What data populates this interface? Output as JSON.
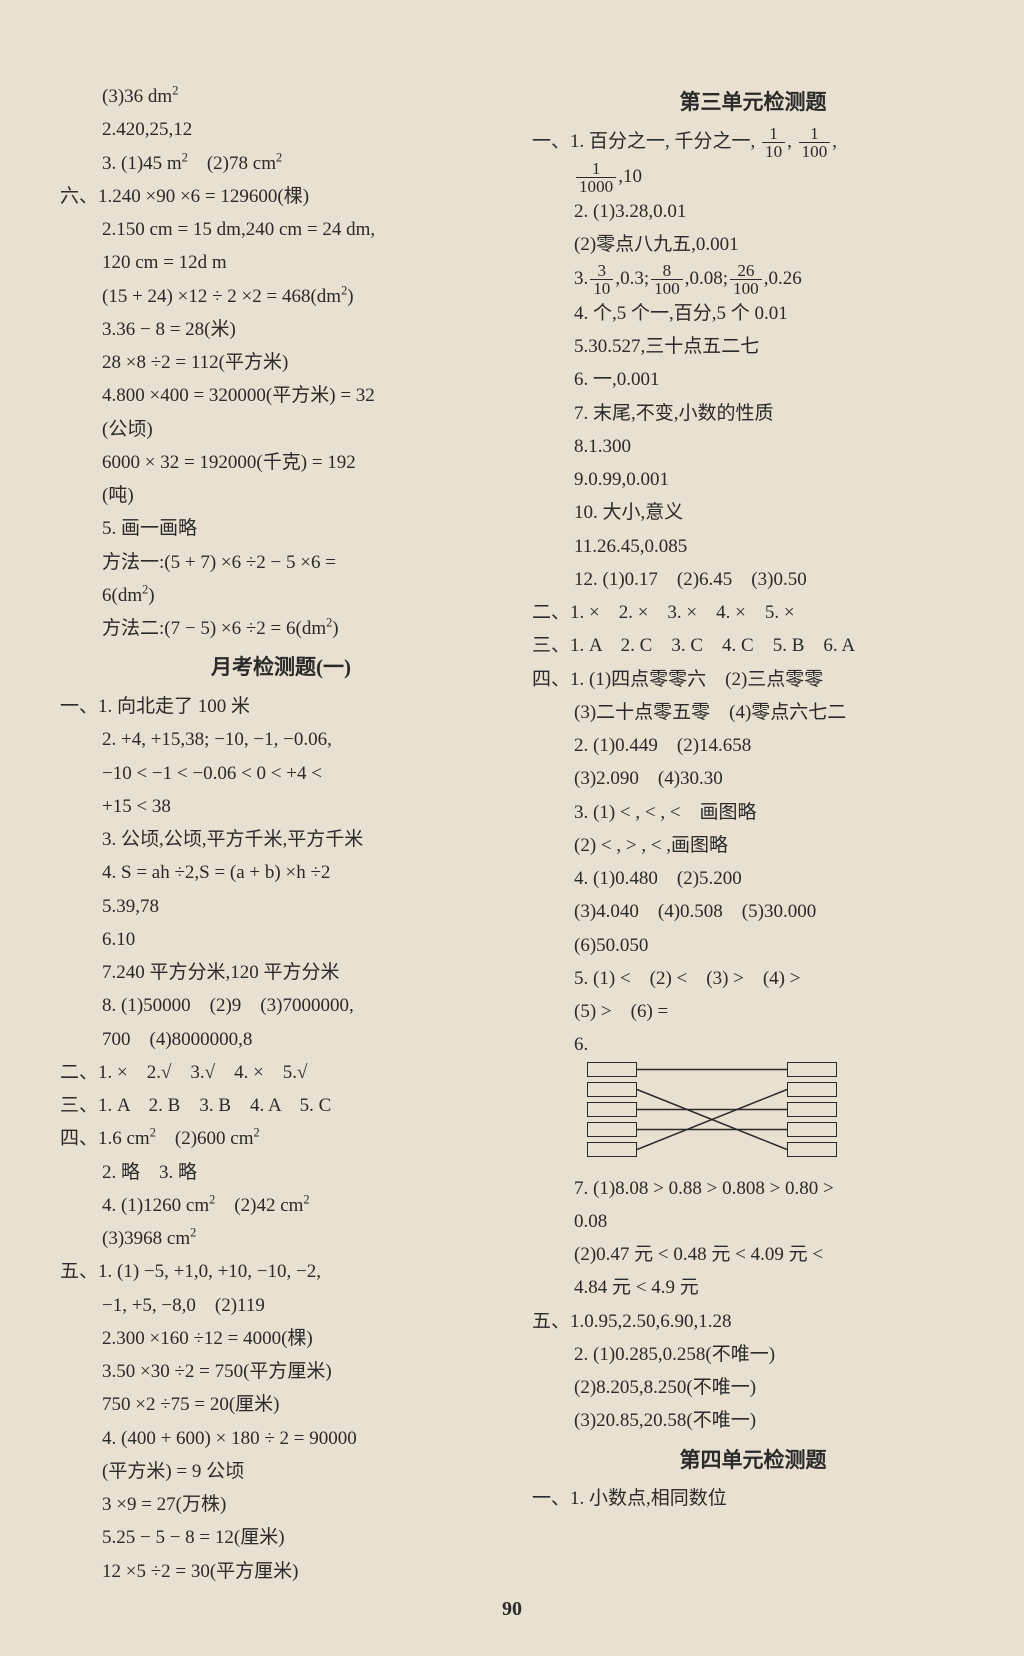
{
  "page_number": "90",
  "left_column": {
    "lines": [
      {
        "t": "(3)36 dm²",
        "cls": "indent1"
      },
      {
        "t": "2.420,25,12",
        "cls": "indent1"
      },
      {
        "t": "3. (1)45 m²　(2)78 cm²",
        "cls": "indent1"
      },
      {
        "t": "六、1.240 ×90 ×6 = 129600(棵)",
        "cls": ""
      },
      {
        "t": "2.150 cm = 15 dm,240 cm = 24 dm,",
        "cls": "indent1"
      },
      {
        "t": "120 cm = 12d m",
        "cls": "indent1"
      },
      {
        "t": "(15 + 24) ×12 ÷ 2 ×2 = 468(dm²)",
        "cls": "indent1"
      },
      {
        "t": "3.36 − 8 = 28(米)",
        "cls": "indent1"
      },
      {
        "t": "28 ×8 ÷2 = 112(平方米)",
        "cls": "indent1"
      },
      {
        "t": "4.800 ×400 = 320000(平方米) = 32",
        "cls": "indent1"
      },
      {
        "t": "(公顷)",
        "cls": "indent1"
      },
      {
        "t": "6000 × 32 = 192000(千克) = 192",
        "cls": "indent1"
      },
      {
        "t": "(吨)",
        "cls": "indent1"
      },
      {
        "t": "5. 画一画略",
        "cls": "indent1"
      },
      {
        "t": "方法一:(5 + 7) ×6 ÷2 − 5 ×6 =",
        "cls": "indent1"
      },
      {
        "t": "6(dm²)",
        "cls": "indent1"
      },
      {
        "t": "方法二:(7 − 5) ×6 ÷2 = 6(dm²)",
        "cls": "indent1"
      }
    ],
    "heading1": "月考检测题(一)",
    "lines2": [
      {
        "t": "一、1. 向北走了 100 米",
        "cls": ""
      },
      {
        "t": "2. +4, +15,38; −10, −1, −0.06,",
        "cls": "indent1"
      },
      {
        "t": "−10 < −1 < −0.06 < 0 < +4 <",
        "cls": "indent1"
      },
      {
        "t": "+15 < 38",
        "cls": "indent1"
      },
      {
        "t": "3. 公顷,公顷,平方千米,平方千米",
        "cls": "indent1"
      },
      {
        "t": "4. S = ah ÷2,S = (a + b) ×h ÷2",
        "cls": "indent1"
      },
      {
        "t": "5.39,78",
        "cls": "indent1"
      },
      {
        "t": "6.10",
        "cls": "indent1"
      },
      {
        "t": "7.240 平方分米,120 平方分米",
        "cls": "indent1"
      },
      {
        "t": "8. (1)50000　(2)9　(3)7000000,",
        "cls": "indent1"
      },
      {
        "t": "700　(4)8000000,8",
        "cls": "indent1"
      },
      {
        "t": "二、1. ×　2.√　3.√　4. ×　5.√",
        "cls": ""
      },
      {
        "t": "三、1. A　2. B　3. B　4. A　5. C",
        "cls": ""
      },
      {
        "t": "四、1.6 cm²　(2)600 cm²",
        "cls": ""
      },
      {
        "t": "2. 略　3. 略",
        "cls": "indent1"
      },
      {
        "t": "4. (1)1260 cm²　(2)42 cm²",
        "cls": "indent1"
      },
      {
        "t": "(3)3968 cm²",
        "cls": "indent1"
      },
      {
        "t": "五、1. (1) −5, +1,0, +10, −10, −2,",
        "cls": ""
      },
      {
        "t": "−1, +5, −8,0　(2)119",
        "cls": "indent1"
      },
      {
        "t": "2.300 ×160 ÷12 = 4000(棵)",
        "cls": "indent1"
      },
      {
        "t": "3.50 ×30 ÷2 = 750(平方厘米)",
        "cls": "indent1"
      },
      {
        "t": "750 ×2 ÷75 = 20(厘米)",
        "cls": "indent1"
      },
      {
        "t": "4. (400 + 600) × 180 ÷ 2 = 90000",
        "cls": "indent1"
      },
      {
        "t": "(平方米) = 9 公顷",
        "cls": "indent1"
      },
      {
        "t": "3 ×9 = 27(万株)",
        "cls": "indent1"
      },
      {
        "t": "5.25 − 5 − 8 = 12(厘米)",
        "cls": "indent1"
      },
      {
        "t": "12 ×5 ÷2 = 30(平方厘米)",
        "cls": "indent1"
      }
    ]
  },
  "right_column": {
    "heading1": "第三单元检测题",
    "line1_prefix": "一、1. 百分之一, 千分之一, ",
    "frac1": {
      "num": "1",
      "den": "10"
    },
    "frac2": {
      "num": "1",
      "den": "100"
    },
    "frac3": {
      "num": "1",
      "den": "1000"
    },
    "line1b_suffix": ",10",
    "lines_a": [
      {
        "t": "2. (1)3.28,0.01",
        "cls": "indent1"
      },
      {
        "t": "(2)零点八九五,0.001",
        "cls": "indent1"
      }
    ],
    "line3_prefix": "3.",
    "frac4": {
      "num": "3",
      "den": "10"
    },
    "frac5": {
      "num": "8",
      "den": "100"
    },
    "frac6": {
      "num": "26",
      "den": "100"
    },
    "line3_mid1": ",0.3;",
    "line3_mid2": ",0.08;",
    "line3_suffix": ",0.26",
    "lines_b": [
      {
        "t": "4. 个,5 个一,百分,5 个 0.01",
        "cls": "indent1"
      },
      {
        "t": "5.30.527,三十点五二七",
        "cls": "indent1"
      },
      {
        "t": "6. 一,0.001",
        "cls": "indent1"
      },
      {
        "t": "7. 末尾,不变,小数的性质",
        "cls": "indent1"
      },
      {
        "t": "8.1.300",
        "cls": "indent1"
      },
      {
        "t": "9.0.99,0.001",
        "cls": "indent1"
      },
      {
        "t": "10. 大小,意义",
        "cls": "indent1"
      },
      {
        "t": "11.26.45,0.085",
        "cls": "indent1"
      },
      {
        "t": "12. (1)0.17　(2)6.45　(3)0.50",
        "cls": "indent1"
      },
      {
        "t": "二、1. ×　2. ×　3. ×　4. ×　5. ×",
        "cls": ""
      },
      {
        "t": "三、1. A　2. C　3. C　4. C　5. B　6. A",
        "cls": ""
      },
      {
        "t": "四、1. (1)四点零零六　(2)三点零零",
        "cls": ""
      },
      {
        "t": "(3)二十点零五零　(4)零点六七二",
        "cls": "indent1"
      },
      {
        "t": "2. (1)0.449　(2)14.658",
        "cls": "indent1"
      },
      {
        "t": "(3)2.090　(4)30.30",
        "cls": "indent1"
      },
      {
        "t": "3. (1) < , < , <　画图略",
        "cls": "indent1"
      },
      {
        "t": "(2) < , > , < ,画图略",
        "cls": "indent1"
      },
      {
        "t": "4. (1)0.480　(2)5.200",
        "cls": "indent1"
      },
      {
        "t": "(3)4.040　(4)0.508　(5)30.000",
        "cls": "indent1"
      },
      {
        "t": "(6)50.050",
        "cls": "indent1"
      },
      {
        "t": "5. (1) <　(2) <　(3) >　(4) >",
        "cls": "indent1"
      },
      {
        "t": "(5) >　(6) =",
        "cls": "indent1"
      },
      {
        "t": "6.",
        "cls": "indent1"
      }
    ],
    "matching": {
      "left_boxes": 5,
      "right_boxes": 5,
      "box_color": "#2a2a2a",
      "connections": [
        {
          "from": 0,
          "to": 0
        },
        {
          "from": 1,
          "to": 4
        },
        {
          "from": 2,
          "to": 2
        },
        {
          "from": 3,
          "to": 3
        },
        {
          "from": 4,
          "to": 1
        }
      ]
    },
    "lines_c": [
      {
        "t": "7. (1)8.08 > 0.88 > 0.808 > 0.80 >",
        "cls": "indent1"
      },
      {
        "t": "0.08",
        "cls": "indent1"
      },
      {
        "t": "(2)0.47 元 < 0.48 元 < 4.09 元 <",
        "cls": "indent1"
      },
      {
        "t": "4.84 元 < 4.9 元",
        "cls": "indent1"
      },
      {
        "t": "五、1.0.95,2.50,6.90,1.28",
        "cls": ""
      },
      {
        "t": "2. (1)0.285,0.258(不唯一)",
        "cls": "indent1"
      },
      {
        "t": "(2)8.205,8.250(不唯一)",
        "cls": "indent1"
      },
      {
        "t": "(3)20.85,20.58(不唯一)",
        "cls": "indent1"
      }
    ],
    "heading2": "第四单元检测题",
    "lines_d": [
      {
        "t": "一、1. 小数点,相同数位",
        "cls": ""
      }
    ]
  }
}
